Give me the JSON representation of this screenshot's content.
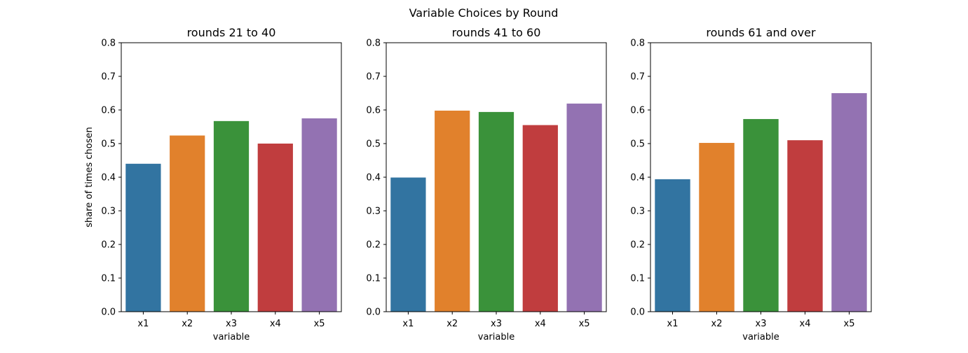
{
  "figure": {
    "suptitle": "Variable Choices by Round"
  },
  "chart_data": [
    {
      "type": "bar",
      "title": "rounds 21 to 40",
      "xlabel": "variable",
      "ylabel": "share of times chosen",
      "categories": [
        "x1",
        "x2",
        "x3",
        "x4",
        "x5"
      ],
      "values": [
        0.44,
        0.524,
        0.567,
        0.5,
        0.575
      ],
      "ylim": [
        0,
        0.8
      ],
      "yticks": [
        "0.0",
        "0.1",
        "0.2",
        "0.3",
        "0.4",
        "0.5",
        "0.6",
        "0.7",
        "0.8"
      ],
      "colors": [
        "#3274a1",
        "#e1812c",
        "#3a923a",
        "#c03d3e",
        "#9372b2"
      ],
      "grid": false
    },
    {
      "type": "bar",
      "title": "rounds 41 to 60",
      "xlabel": "variable",
      "ylabel": "",
      "categories": [
        "x1",
        "x2",
        "x3",
        "x4",
        "x5"
      ],
      "values": [
        0.399,
        0.598,
        0.594,
        0.555,
        0.619
      ],
      "ylim": [
        0,
        0.8
      ],
      "yticks": [
        "0.0",
        "0.1",
        "0.2",
        "0.3",
        "0.4",
        "0.5",
        "0.6",
        "0.7",
        "0.8"
      ],
      "colors": [
        "#3274a1",
        "#e1812c",
        "#3a923a",
        "#c03d3e",
        "#9372b2"
      ],
      "grid": false
    },
    {
      "type": "bar",
      "title": "rounds 61 and over",
      "xlabel": "variable",
      "ylabel": "",
      "categories": [
        "x1",
        "x2",
        "x3",
        "x4",
        "x5"
      ],
      "values": [
        0.394,
        0.502,
        0.573,
        0.51,
        0.65
      ],
      "ylim": [
        0,
        0.8
      ],
      "yticks": [
        "0.0",
        "0.1",
        "0.2",
        "0.3",
        "0.4",
        "0.5",
        "0.6",
        "0.7",
        "0.8"
      ],
      "colors": [
        "#3274a1",
        "#e1812c",
        "#3a923a",
        "#c03d3e",
        "#9372b2"
      ],
      "grid": false
    }
  ]
}
